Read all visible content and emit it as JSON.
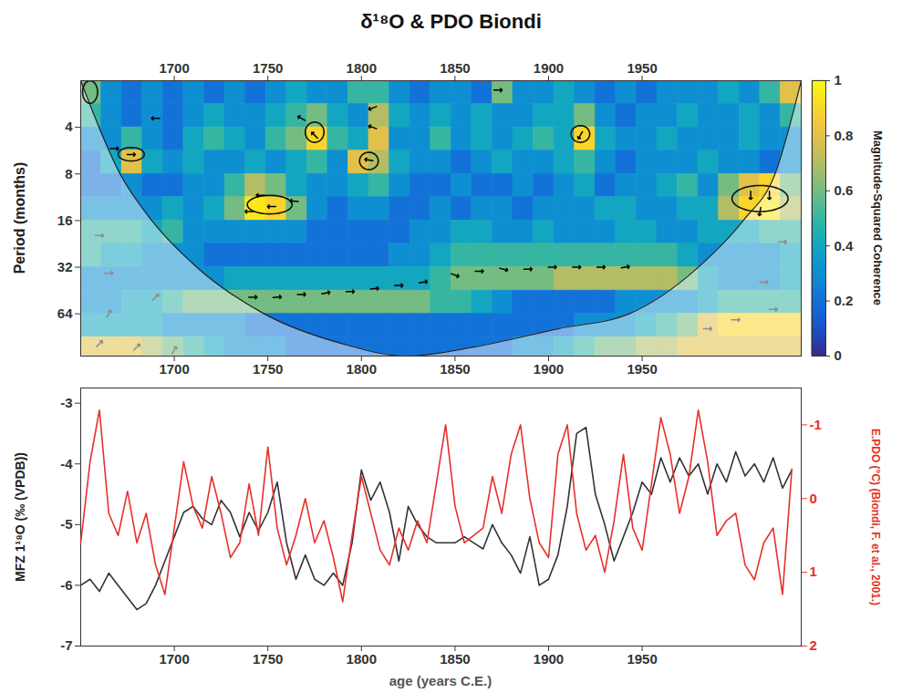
{
  "chart_data": [
    {
      "type": "heatmap",
      "title": "δ¹⁸O & PDO Biondi",
      "y_label": "Period (months)",
      "log": "y",
      "xlim": [
        1650,
        2035
      ],
      "xticks": [
        1700,
        1750,
        1800,
        1850,
        1900,
        1950
      ],
      "ylim": [
        120,
        2
      ],
      "yticks": [
        4,
        8,
        16,
        32,
        64
      ],
      "x_edges": [
        1650,
        1661,
        1672,
        1683,
        1694,
        1705,
        1716,
        1727,
        1738,
        1749,
        1760,
        1771,
        1782,
        1793,
        1804,
        1815,
        1826,
        1837,
        1848,
        1859,
        1870,
        1881,
        1892,
        1903,
        1914,
        1925,
        1936,
        1947,
        1958,
        1969,
        1980,
        1991,
        2002,
        2013,
        2024,
        2035
      ],
      "period_edges": [
        2,
        2.83,
        4,
        5.66,
        8,
        11.3,
        16,
        22.6,
        32,
        45.3,
        64,
        90.5,
        120
      ],
      "coherence": [
        [
          0.6,
          0.3,
          0.2,
          0.3,
          0.2,
          0.3,
          0.2,
          0.3,
          0.2,
          0.3,
          0.4,
          0.3,
          0.3,
          0.5,
          0.5,
          0.3,
          0.2,
          0.3,
          0.3,
          0.2,
          0.6,
          0.3,
          0.3,
          0.4,
          0.3,
          0.2,
          0.3,
          0.2,
          0.3,
          0.3,
          0.3,
          0.4,
          0.3,
          0.5,
          0.8
        ],
        [
          0.5,
          0.3,
          0.2,
          0.3,
          0.2,
          0.3,
          0.4,
          0.3,
          0.3,
          0.4,
          0.5,
          0.6,
          0.4,
          0.3,
          0.7,
          0.4,
          0.3,
          0.4,
          0.3,
          0.4,
          0.3,
          0.3,
          0.4,
          0.4,
          0.6,
          0.3,
          0.2,
          0.3,
          0.3,
          0.4,
          0.3,
          0.3,
          0.4,
          0.3,
          0.5
        ],
        [
          0.3,
          0.3,
          0.5,
          0.3,
          0.2,
          0.4,
          0.5,
          0.4,
          0.3,
          0.5,
          0.6,
          0.9,
          0.5,
          0.4,
          0.8,
          0.3,
          0.3,
          0.5,
          0.3,
          0.4,
          0.3,
          0.4,
          0.5,
          0.4,
          0.9,
          0.4,
          0.3,
          0.3,
          0.4,
          0.3,
          0.3,
          0.3,
          0.4,
          0.3,
          0.3
        ],
        [
          0.2,
          0.4,
          0.8,
          0.4,
          0.3,
          0.4,
          0.3,
          0.3,
          0.4,
          0.3,
          0.4,
          0.5,
          0.3,
          0.8,
          0.7,
          0.4,
          0.3,
          0.3,
          0.2,
          0.3,
          0.4,
          0.3,
          0.3,
          0.4,
          0.5,
          0.3,
          0.2,
          0.3,
          0.3,
          0.3,
          0.4,
          0.3,
          0.3,
          0.2,
          0.3
        ],
        [
          0.2,
          0.2,
          0.3,
          0.2,
          0.2,
          0.3,
          0.3,
          0.5,
          0.7,
          0.6,
          0.4,
          0.3,
          0.3,
          0.4,
          0.5,
          0.3,
          0.2,
          0.2,
          0.3,
          0.2,
          0.2,
          0.3,
          0.2,
          0.3,
          0.4,
          0.2,
          0.3,
          0.3,
          0.4,
          0.5,
          0.3,
          0.6,
          0.8,
          0.9,
          0.6
        ],
        [
          0.3,
          0.3,
          0.3,
          0.3,
          0.4,
          0.3,
          0.4,
          0.6,
          0.95,
          0.9,
          0.6,
          0.3,
          0.2,
          0.3,
          0.3,
          0.2,
          0.2,
          0.3,
          0.2,
          0.3,
          0.3,
          0.2,
          0.3,
          0.3,
          0.3,
          0.4,
          0.4,
          0.3,
          0.3,
          0.4,
          0.4,
          0.7,
          0.9,
          0.95,
          0.7
        ],
        [
          0.5,
          0.5,
          0.5,
          0.4,
          0.5,
          0.3,
          0.3,
          0.3,
          0.3,
          0.3,
          0.3,
          0.2,
          0.2,
          0.2,
          0.2,
          0.2,
          0.3,
          0.3,
          0.4,
          0.4,
          0.3,
          0.3,
          0.4,
          0.3,
          0.3,
          0.3,
          0.4,
          0.4,
          0.3,
          0.3,
          0.4,
          0.4,
          0.4,
          0.5,
          0.5
        ],
        [
          0.5,
          0.4,
          0.4,
          0.3,
          0.3,
          0.3,
          0.2,
          0.2,
          0.2,
          0.2,
          0.2,
          0.2,
          0.2,
          0.2,
          0.2,
          0.3,
          0.3,
          0.4,
          0.5,
          0.5,
          0.5,
          0.5,
          0.5,
          0.5,
          0.5,
          0.5,
          0.5,
          0.5,
          0.5,
          0.4,
          0.3,
          0.3,
          0.3,
          0.3,
          0.4
        ],
        [
          0.3,
          0.3,
          0.3,
          0.3,
          0.3,
          0.3,
          0.3,
          0.4,
          0.4,
          0.4,
          0.4,
          0.4,
          0.4,
          0.4,
          0.4,
          0.4,
          0.4,
          0.5,
          0.6,
          0.6,
          0.6,
          0.6,
          0.6,
          0.7,
          0.7,
          0.7,
          0.7,
          0.7,
          0.7,
          0.6,
          0.4,
          0.3,
          0.3,
          0.3,
          0.4
        ],
        [
          0.3,
          0.3,
          0.4,
          0.4,
          0.5,
          0.6,
          0.6,
          0.6,
          0.6,
          0.6,
          0.6,
          0.6,
          0.6,
          0.6,
          0.6,
          0.6,
          0.6,
          0.5,
          0.5,
          0.4,
          0.3,
          0.2,
          0.2,
          0.2,
          0.2,
          0.2,
          0.3,
          0.3,
          0.3,
          0.3,
          0.4,
          0.5,
          0.5,
          0.5,
          0.5
        ],
        [
          0.4,
          0.4,
          0.4,
          0.4,
          0.3,
          0.3,
          0.3,
          0.3,
          0.2,
          0.2,
          0.2,
          0.2,
          0.2,
          0.2,
          0.2,
          0.2,
          0.2,
          0.2,
          0.2,
          0.2,
          0.2,
          0.2,
          0.2,
          0.2,
          0.3,
          0.3,
          0.3,
          0.4,
          0.5,
          0.6,
          0.8,
          0.9,
          0.9,
          0.9,
          0.9
        ],
        [
          0.8,
          0.8,
          0.8,
          0.7,
          0.6,
          0.5,
          0.4,
          0.3,
          0.3,
          0.3,
          0.2,
          0.2,
          0.2,
          0.2,
          0.2,
          0.2,
          0.2,
          0.2,
          0.2,
          0.2,
          0.2,
          0.3,
          0.3,
          0.4,
          0.5,
          0.6,
          0.6,
          0.7,
          0.7,
          0.8,
          0.8,
          0.8,
          0.8,
          0.8,
          0.8
        ]
      ],
      "colorbar": {
        "label": "Magnitude-Squared Coherence",
        "lim": [
          0,
          1
        ],
        "ticks": [
          0,
          0.2,
          0.4,
          0.6,
          0.8,
          1
        ]
      },
      "coi": {
        "x": [
          1650,
          1671,
          1688,
          1712,
          1748,
          1790,
          1824,
          1860,
          1905,
          1943,
          1980,
          2004,
          2021,
          2035
        ],
        "period": [
          2,
          8,
          16,
          32,
          64,
          100,
          120,
          105,
          80,
          64,
          32,
          16,
          8,
          2
        ]
      },
      "arrows": [
        {
          "color": "#000000",
          "x": [
            1742,
            1755,
            1768,
            1781,
            1794,
            1807,
            1820,
            1833,
            1850,
            1863,
            1876,
            1889,
            1902,
            1915,
            1928,
            1941,
            1740,
            1752,
            1764,
            1746,
            1775,
            1768,
            1804,
            1806,
            1806,
            1677,
            1668,
            2008,
            2018,
            2013,
            1917,
            1873,
            1690
          ],
          "period": [
            50,
            50,
            48,
            47,
            46,
            44,
            42,
            40,
            36,
            34,
            33,
            33,
            32,
            32,
            32,
            32,
            14,
            13,
            12,
            11,
            4.5,
            3.5,
            6.5,
            4,
            3,
            6,
            5.5,
            11,
            11,
            14,
            4.5,
            2.3,
            3.5
          ],
          "phase": [
            0,
            5,
            0,
            10,
            0,
            5,
            0,
            10,
            -20,
            0,
            -15,
            0,
            0,
            0,
            0,
            10,
            180,
            180,
            175,
            180,
            135,
            150,
            170,
            160,
            200,
            0,
            0,
            270,
            270,
            260,
            240,
            0,
            180
          ]
        },
        {
          "color": "#8c8c8c",
          "x": [
            1660,
            1665,
            1680,
            1700,
            1665,
            1690,
            1985,
            2000,
            2020,
            2015,
            2025,
            1660
          ],
          "period": [
            100,
            64,
            105,
            110,
            35,
            50,
            80,
            70,
            60,
            40,
            22,
            20
          ],
          "phase": [
            45,
            60,
            45,
            60,
            0,
            45,
            0,
            0,
            0,
            0,
            0,
            0
          ]
        }
      ],
      "significant_regions": [
        {
          "x": [
            1739,
            1763
          ],
          "period": [
            11,
            14.5
          ]
        },
        {
          "x": [
            1770,
            1780
          ],
          "period": [
            3.7,
            5
          ]
        },
        {
          "x": [
            1799,
            1809
          ],
          "period": [
            5.8,
            7.5
          ]
        },
        {
          "x": [
            1998,
            2028
          ],
          "period": [
            9.5,
            14
          ]
        },
        {
          "x": [
            1912,
            1922
          ],
          "period": [
            3.9,
            5
          ]
        },
        {
          "x": [
            1651,
            1659
          ],
          "period": [
            2,
            2.8
          ]
        },
        {
          "x": [
            1670,
            1684
          ],
          "period": [
            5.4,
            6.6
          ]
        }
      ]
    },
    {
      "type": "line",
      "x_label": "age (years C.E.)",
      "y_label": "MFZ 1¹⁸O (‰ (VPDB))",
      "y2_label": "E.PDO (°C) (Biondi, F. et al., 2001.)",
      "xlim": [
        1650,
        2035
      ],
      "xticks": [
        1700,
        1750,
        1800,
        1850,
        1900,
        1950
      ],
      "ylim": [
        -7,
        -2.75
      ],
      "yticks": [
        -7,
        -6,
        -5,
        -4,
        -3
      ],
      "y2lim": [
        2,
        -1.5
      ],
      "y2ticks": [
        -1,
        0,
        1,
        2
      ],
      "x": [
        1650,
        1655,
        1660,
        1665,
        1670,
        1675,
        1680,
        1685,
        1690,
        1695,
        1700,
        1705,
        1710,
        1715,
        1720,
        1725,
        1730,
        1735,
        1740,
        1745,
        1750,
        1755,
        1760,
        1765,
        1770,
        1775,
        1780,
        1785,
        1790,
        1795,
        1800,
        1805,
        1810,
        1815,
        1820,
        1825,
        1830,
        1835,
        1840,
        1845,
        1850,
        1855,
        1860,
        1865,
        1870,
        1875,
        1880,
        1885,
        1890,
        1895,
        1900,
        1905,
        1910,
        1915,
        1920,
        1925,
        1930,
        1935,
        1940,
        1945,
        1950,
        1955,
        1960,
        1965,
        1970,
        1975,
        1980,
        1985,
        1990,
        1995,
        2000,
        2005,
        2010,
        2015,
        2020,
        2025,
        2030
      ],
      "series": [
        {
          "color": "#333333",
          "values": [
            -6.0,
            -5.9,
            -6.1,
            -5.8,
            -6.0,
            -6.2,
            -6.4,
            -6.3,
            -6.0,
            -5.6,
            -5.2,
            -4.8,
            -4.7,
            -4.9,
            -5.0,
            -4.6,
            -4.8,
            -5.2,
            -4.8,
            -5.1,
            -4.8,
            -4.3,
            -5.3,
            -5.9,
            -5.5,
            -5.9,
            -6.0,
            -5.8,
            -6.0,
            -5.3,
            -4.1,
            -4.6,
            -4.3,
            -4.8,
            -5.6,
            -4.7,
            -5.0,
            -5.2,
            -5.3,
            -5.3,
            -5.3,
            -5.2,
            -5.3,
            -5.4,
            -5.0,
            -5.3,
            -5.5,
            -5.8,
            -5.2,
            -6.0,
            -5.9,
            -5.5,
            -4.7,
            -3.5,
            -3.4,
            -4.5,
            -5.0,
            -5.6,
            -5.2,
            -4.8,
            -4.3,
            -4.5,
            -3.9,
            -4.3,
            -3.9,
            -4.2,
            -4.0,
            -4.5,
            -4.0,
            -4.3,
            -3.8,
            -4.2,
            -4.0,
            -4.3,
            -3.9,
            -4.4,
            -4.1
          ]
        },
        {
          "color": "#e8302a",
          "axis": "y2",
          "values": [
            0.6,
            -0.5,
            -1.2,
            0.2,
            0.5,
            -0.1,
            0.6,
            0.2,
            0.9,
            1.3,
            0.4,
            -0.5,
            0.1,
            0.4,
            -0.3,
            0.2,
            0.8,
            0.6,
            -0.2,
            0.5,
            -0.7,
            0.4,
            0.9,
            0.5,
            0.0,
            0.6,
            0.3,
            0.8,
            1.4,
            0.5,
            -0.3,
            0.2,
            0.7,
            0.9,
            0.4,
            0.7,
            0.3,
            0.6,
            -0.2,
            -1.0,
            0.1,
            0.6,
            0.5,
            0.4,
            -0.3,
            0.2,
            -0.6,
            -1.0,
            0.0,
            0.6,
            0.8,
            -0.6,
            -1.0,
            0.2,
            0.7,
            0.5,
            1.0,
            0.3,
            -0.6,
            0.4,
            0.7,
            -0.2,
            -1.1,
            -0.6,
            0.2,
            -0.3,
            -1.2,
            -0.5,
            0.5,
            0.3,
            0.2,
            0.9,
            1.1,
            0.6,
            0.4,
            1.3,
            -0.4
          ]
        }
      ]
    }
  ]
}
